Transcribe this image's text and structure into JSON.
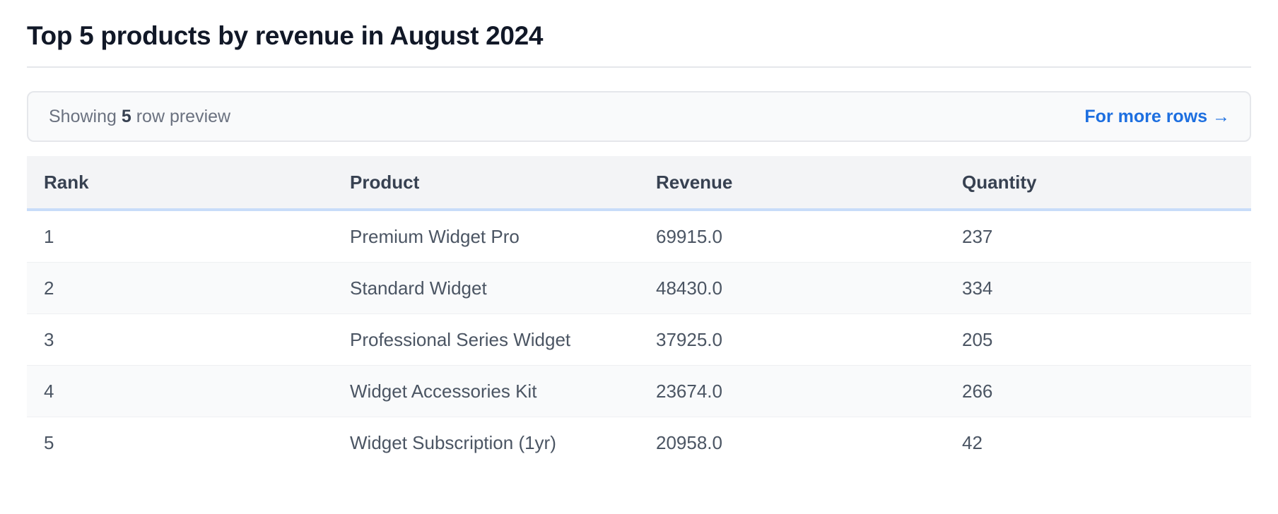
{
  "page": {
    "title": "Top 5 products by revenue in August 2024"
  },
  "preview": {
    "prefix": "Showing",
    "count": "5",
    "suffix": "row preview",
    "more_link": "For more rows →"
  },
  "table": {
    "headers": [
      "Rank",
      "Product",
      "Revenue",
      "Quantity"
    ],
    "rows": [
      [
        "1",
        "Premium Widget Pro",
        "69915.0",
        "237"
      ],
      [
        "2",
        "Standard Widget",
        "48430.0",
        "334"
      ],
      [
        "3",
        "Professional Series Widget",
        "37925.0",
        "205"
      ],
      [
        "4",
        "Widget Accessories Kit",
        "23674.0",
        "266"
      ],
      [
        "5",
        "Widget Subscription (1yr)",
        "20958.0",
        "42"
      ]
    ]
  }
}
